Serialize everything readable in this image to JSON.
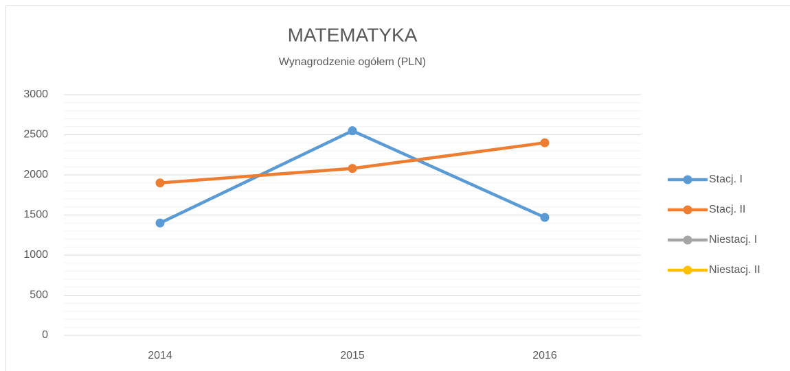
{
  "chart_data": {
    "type": "line",
    "title": "MATEMATYKA",
    "subtitle": "Wynagrodzenie ogółem (PLN)",
    "categories": [
      "2014",
      "2015",
      "2016"
    ],
    "series": [
      {
        "name": "Stacj. I",
        "color": "#5b9bd5",
        "values": [
          1400,
          2550,
          1470
        ]
      },
      {
        "name": "Stacj. II",
        "color": "#ed7d31",
        "values": [
          1900,
          2080,
          2400
        ]
      },
      {
        "name": "Niestacj. I",
        "color": "#a5a5a5",
        "values": [
          null,
          null,
          null
        ]
      },
      {
        "name": "Niestacj. II",
        "color": "#ffc000",
        "values": [
          null,
          null,
          null
        ]
      }
    ],
    "ylim": [
      0,
      3000
    ],
    "yticks": [
      0,
      500,
      1000,
      1500,
      2000,
      2500,
      3000
    ],
    "grid": true,
    "legend": "right"
  }
}
